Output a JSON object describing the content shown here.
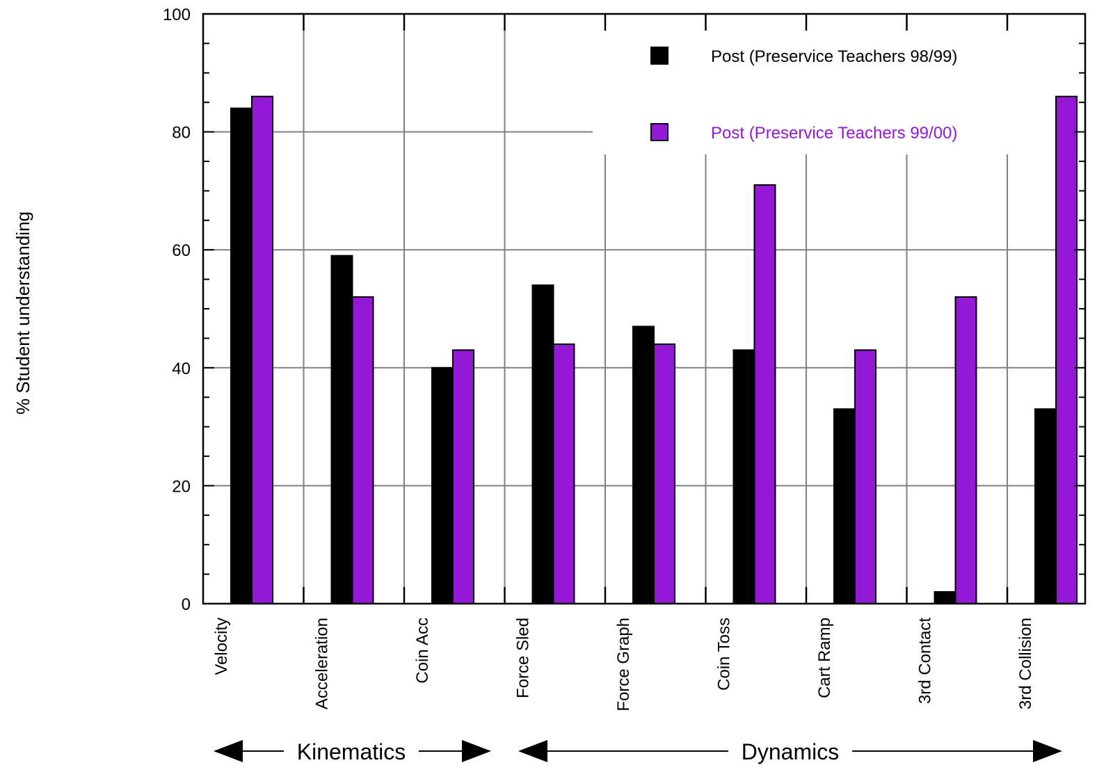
{
  "chart_data": {
    "type": "bar",
    "ylabel": "% Student understanding",
    "ylim": [
      0,
      100
    ],
    "yticks": [
      0,
      20,
      40,
      60,
      80,
      100
    ],
    "y_minor_step": 5,
    "grid": true,
    "legend_position": "top-right",
    "categories": [
      "Velocity",
      "Acceleration",
      "Coin Acc",
      "Force Sled",
      "Force Graph",
      "Coin Toss",
      "Cart Ramp",
      "3rd Contact",
      "3rd Collision"
    ],
    "series": [
      {
        "name": "Post (Preservice Teachers 98/99)",
        "color": "#000000",
        "values": [
          84,
          59,
          40,
          54,
          47,
          43,
          33,
          2,
          33
        ]
      },
      {
        "name": "Post (Preservice Teachers 99/00)",
        "color": "#9419d6",
        "values": [
          86,
          52,
          43,
          44,
          44,
          71,
          43,
          52,
          86
        ]
      }
    ],
    "groups": [
      {
        "label": "Kinematics",
        "categories": [
          "Velocity",
          "Acceleration",
          "Coin Acc"
        ]
      },
      {
        "label": "Dynamics",
        "categories": [
          "Force Sled",
          "Force Graph",
          "Coin Toss",
          "Cart Ramp",
          "3rd Contact",
          "3rd Collision"
        ]
      }
    ]
  }
}
